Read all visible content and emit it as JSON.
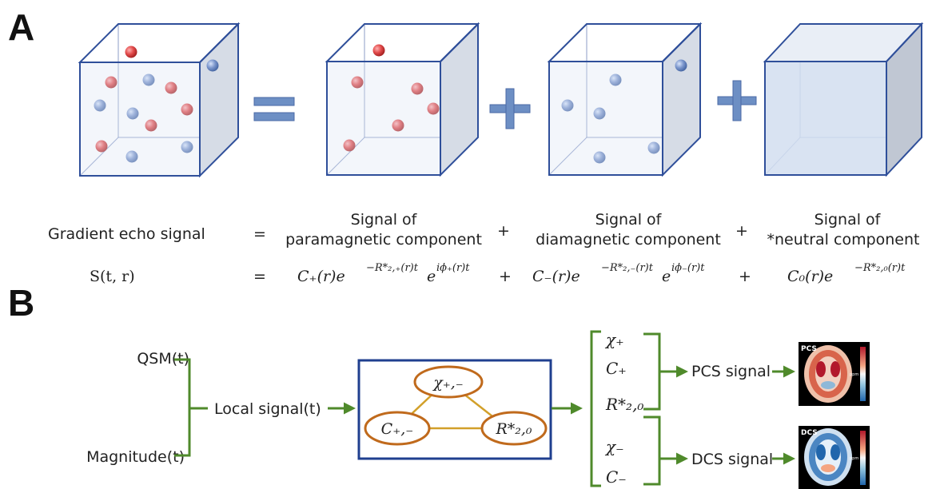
{
  "panels": {
    "a": "A",
    "b": "B"
  },
  "colors": {
    "cube_edge": "#2f4f9a",
    "cube_face": "#dce5f3",
    "cube_side": "#c3ccd8",
    "paramagnetic": "#e24a4a",
    "diamagnetic": "#6e8cc6",
    "operator": "#6d8fc4",
    "arrow": "#4f8a2b",
    "ellipse_edge": "#c06a1c",
    "triangle": "#d2a02a",
    "box_edge": "#1f3f8f"
  },
  "panel_a": {
    "eq_row1": {
      "left": "Gradient echo signal",
      "eq": "=",
      "para_l1": "Signal of",
      "para_l2": "paramagnetic component",
      "plus1": "+",
      "dia_l1": "Signal of",
      "dia_l2": "diamagnetic component",
      "plus2": "+",
      "neu_l1": "Signal of",
      "neu_l2": "*neutral component"
    },
    "eq_row2": {
      "left": "S(t, r)",
      "eq": "=",
      "term_plus": "C₊(r)e^{-R*₂,₊(r)t} e^{iφ₊(r)t}",
      "term_plus_main": "C₊(r)e",
      "term_plus_exp1": "−R*₂,₊(r)t",
      "term_plus_e2": "e",
      "term_plus_exp2": "iϕ₊(r)t",
      "plus1": "+",
      "term_minus_main": "C₋(r)e",
      "term_minus_exp1": "−R*₂,₋(r)t",
      "term_minus_e2": "e",
      "term_minus_exp2": "iϕ₋(r)t",
      "plus2": "+",
      "term_zero_main": "C₀(r)e",
      "term_zero_exp1": "−R*₂,₀(r)t"
    }
  },
  "panel_b": {
    "qsm": "QSM(t)",
    "magnitude": "Magnitude(t)",
    "local_signal": "Local signal(t)",
    "node_chi": "χ₊,₋",
    "node_c": "C₊,₋",
    "node_r": "R*₂,₀",
    "out_chi_plus": "χ₊",
    "out_c_plus": "C₊",
    "out_r": "R*₂,₀",
    "out_chi_minus": "χ₋",
    "out_c_minus": "C₋",
    "pcs_signal": "PCS signal",
    "dcs_signal": "DCS signal",
    "pcs_map_label": "PCS",
    "dcs_map_label": "DCS",
    "colorbar_label": "ppm"
  }
}
